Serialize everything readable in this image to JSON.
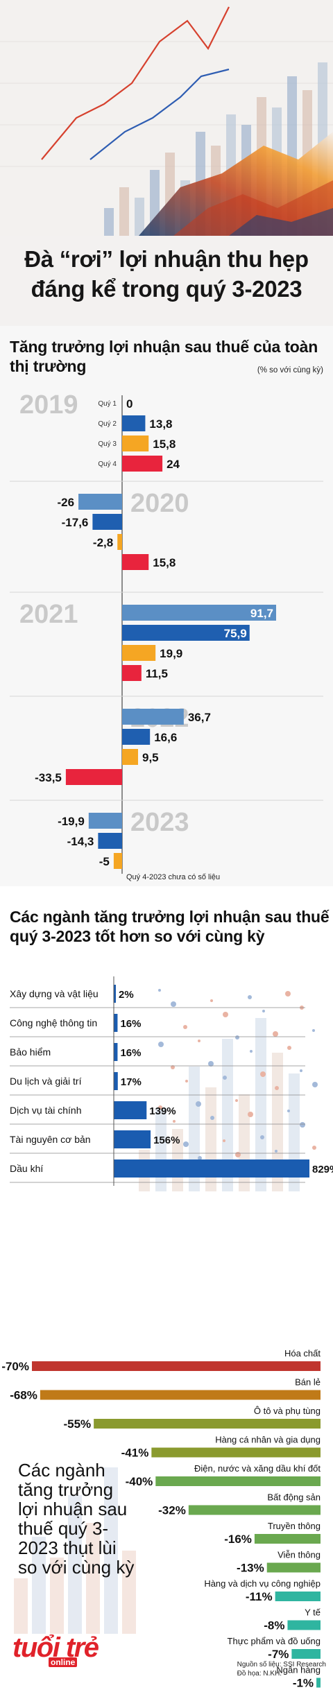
{
  "headline": "Đà “rơi” lợi nhuận thu hẹp đáng kể trong quý 3-2023",
  "section1": {
    "title": "Tăng trưởng lợi nhuận sau thuế của toàn thị trường",
    "unit_note": "(% so với cùng kỳ)",
    "footnote": "Quý 4-2023 chưa có số liệu"
  },
  "section2": {
    "title": "Các ngành tăng trưởng lợi nhuận sau thuế quý 3-2023 tốt hơn so với cùng kỳ"
  },
  "section3": {
    "title": "Các ngành tăng trưởng lợi nhuận sau thuế quý 3-2023 thụt lùi so với cùng kỳ"
  },
  "source": "Nguồn số liệu: SSI Research",
  "graphics": "Đồ họa: N.KH.",
  "logo": {
    "main": "tuổi trẻ",
    "sub": "online"
  },
  "colors": {
    "q1": "#5b8fc5",
    "q2": "#1f5fb0",
    "q3": "#f5a623",
    "q4": "#e8243d",
    "year_label": "#c9c9c9",
    "improve_bar": "#1a5cb0",
    "hoa_chat": "#c0352e",
    "ban_le": "#c07a18",
    "olive": "#8a9a2e",
    "green": "#6aa84f",
    "teal": "#2fb5a0"
  },
  "chart_data": [
    {
      "type": "bar",
      "title": "Tăng trưởng lợi nhuận sau thuế của toàn thị trường",
      "ylabel": "% so với cùng kỳ",
      "groups": [
        {
          "year": "2019",
          "bars": [
            {
              "quarter": "Quý 1",
              "label": "0",
              "value": 0
            },
            {
              "quarter": "Quý 2",
              "label": "13,8",
              "value": 13.8
            },
            {
              "quarter": "Quý 3",
              "label": "15,8",
              "value": 15.8
            },
            {
              "quarter": "Quý 4",
              "label": "24",
              "value": 24
            }
          ]
        },
        {
          "year": "2020",
          "bars": [
            {
              "quarter": "",
              "label": "-26",
              "value": -26
            },
            {
              "quarter": "",
              "label": "-17,6",
              "value": -17.6
            },
            {
              "quarter": "",
              "label": "-2,8",
              "value": -2.8
            },
            {
              "quarter": "",
              "label": "15,8",
              "value": 15.8
            }
          ]
        },
        {
          "year": "2021",
          "bars": [
            {
              "quarter": "",
              "label": "91,7",
              "value": 91.7
            },
            {
              "quarter": "",
              "label": "75,9",
              "value": 75.9
            },
            {
              "quarter": "",
              "label": "19,9",
              "value": 19.9
            },
            {
              "quarter": "",
              "label": "11,5",
              "value": 11.5
            }
          ]
        },
        {
          "year": "2022",
          "bars": [
            {
              "quarter": "",
              "label": "36,7",
              "value": 36.7
            },
            {
              "quarter": "",
              "label": "16,6",
              "value": 16.6
            },
            {
              "quarter": "",
              "label": "9,5",
              "value": 9.5
            },
            {
              "quarter": "",
              "label": "-33,5",
              "value": -33.5
            }
          ]
        },
        {
          "year": "2023",
          "bars": [
            {
              "quarter": "",
              "label": "-19,9",
              "value": -19.9
            },
            {
              "quarter": "",
              "label": "-14,3",
              "value": -14.3
            },
            {
              "quarter": "",
              "label": "-5",
              "value": -5
            }
          ]
        }
      ]
    },
    {
      "type": "bar",
      "title": "Các ngành tăng trưởng lợi nhuận sau thuế quý 3-2023 tốt hơn so với cùng kỳ",
      "orientation": "horizontal",
      "categories": [
        "Xây dựng và vật liệu",
        "Công nghệ thông tin",
        "Bảo hiểm",
        "Du lịch và giải trí",
        "Dịch vụ tài chính",
        "Tài nguyên cơ bản",
        "Dầu khí"
      ],
      "values": [
        2,
        16,
        16,
        17,
        139,
        156,
        829
      ],
      "value_labels": [
        "2%",
        "16%",
        "16%",
        "17%",
        "139%",
        "156%",
        "829%"
      ]
    },
    {
      "type": "bar",
      "title": "Các ngành tăng trưởng lợi nhuận sau thuế quý 3-2023 thụt lùi so với cùng kỳ",
      "orientation": "horizontal",
      "categories": [
        "Hóa chất",
        "Bán lẻ",
        "Ô tô và phụ tùng",
        "Hàng cá nhân và gia dụng",
        "Điện, nước và xăng dầu khí đốt",
        "Bất động sản",
        "Truyền thông",
        "Viễn thông",
        "Hàng và dịch vụ công nghiệp",
        "Y tế",
        "Thực phẩm và đồ uống",
        "Ngân hàng"
      ],
      "values": [
        -70,
        -68,
        -55,
        -41,
        -40,
        -32,
        -16,
        -13,
        -11,
        -8,
        -7,
        -1
      ],
      "value_labels": [
        "-70%",
        "-68%",
        "-55%",
        "-41%",
        "-40%",
        "-32%",
        "-16%",
        "-13%",
        "-11%",
        "-8%",
        "-7%",
        "-1%"
      ]
    }
  ]
}
